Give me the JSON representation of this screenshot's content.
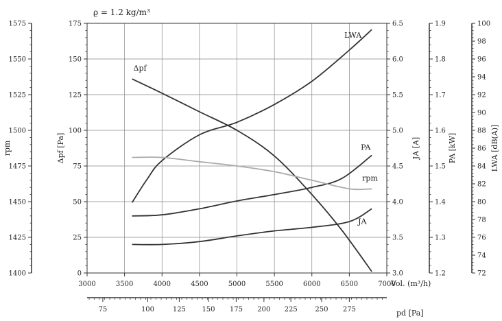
{
  "chart_data": {
    "type": "line",
    "density_note": "ϱ = 1.2 kg/m³",
    "x_axis": {
      "label": "Vol. (m³/h)",
      "min": 3000,
      "max": 7000,
      "ticks": [
        "3000",
        "3500",
        "4000",
        "4500",
        "5000",
        "5500",
        "6000",
        "6500",
        "7000"
      ]
    },
    "x2_axis": {
      "label": "pd [Pa]",
      "ticks": [
        {
          "v": 75,
          "x": 3210
        },
        {
          "v": 100,
          "x": 3810
        },
        {
          "v": 125,
          "x": 4230
        },
        {
          "v": 150,
          "x": 4620
        },
        {
          "v": 175,
          "x": 4990
        },
        {
          "v": 200,
          "x": 5360
        },
        {
          "v": 225,
          "x": 5720
        },
        {
          "v": 250,
          "x": 6130
        },
        {
          "v": 275,
          "x": 6500
        }
      ],
      "tick_labels": [
        "75",
        "100",
        "125",
        "150",
        "175",
        "200",
        "225",
        "250",
        "275"
      ]
    },
    "axes": {
      "rpm": {
        "label": "rpm",
        "min": 1400,
        "max": 1575,
        "ticks": [
          "1400",
          "1425",
          "1450",
          "1475",
          "1500",
          "1525",
          "1550",
          "1575"
        ]
      },
      "dp": {
        "label": "Δpf [Pa]",
        "min": 0,
        "max": 175,
        "ticks": [
          "0",
          "25",
          "50",
          "75",
          "100",
          "125",
          "150",
          "175"
        ]
      },
      "ja": {
        "label": "JA [A]",
        "min": 3.0,
        "max": 6.5,
        "ticks": [
          "3.0",
          "3.5",
          "4.0",
          "4.5",
          "5.0",
          "5.5",
          "6.0",
          "6.5"
        ]
      },
      "pa": {
        "label": "PA [kW]",
        "min": 1.2,
        "max": 1.9,
        "ticks": [
          "1.2",
          "1.3",
          "1.4",
          "1.5",
          "1.6",
          "1.7",
          "1.8",
          "1.9"
        ]
      },
      "lwa": {
        "label": "LWA [dB(A)]",
        "min": 72,
        "max": 100,
        "ticks": [
          "72",
          "74",
          "76",
          "78",
          "80",
          "82",
          "84",
          "86",
          "88",
          "90",
          "92",
          "94",
          "96",
          "98",
          "100"
        ]
      }
    },
    "series": [
      {
        "name": "Δpf",
        "axis": "dp",
        "color": "#333333",
        "x": [
          3600,
          4000,
          4500,
          5000,
          5500,
          6000,
          6400,
          6800
        ],
        "y": [
          136,
          126,
          113,
          100,
          82,
          55,
          30,
          1
        ]
      },
      {
        "name": "LWA",
        "axis": "lwa",
        "color": "#333333",
        "x": [
          3600,
          3800,
          4000,
          4500,
          5000,
          5500,
          6000,
          6500,
          6800
        ],
        "y": [
          79.9,
          82.5,
          84.6,
          87.5,
          88.9,
          90.9,
          93.5,
          97.0,
          99.3
        ]
      },
      {
        "name": "PA",
        "axis": "pa",
        "color": "#333333",
        "x": [
          3600,
          4000,
          4500,
          5000,
          5500,
          6000,
          6400,
          6800
        ],
        "y": [
          1.36,
          1.363,
          1.38,
          1.402,
          1.42,
          1.44,
          1.465,
          1.53
        ]
      },
      {
        "name": "rpm",
        "axis": "rpm",
        "color": "#aaaaaa",
        "x": [
          3600,
          4000,
          4500,
          5000,
          5500,
          6000,
          6500,
          6800
        ],
        "y": [
          1481,
          1481,
          1478,
          1475,
          1471,
          1465,
          1459,
          1459
        ]
      },
      {
        "name": "JA",
        "axis": "ja",
        "color": "#333333",
        "x": [
          3600,
          4000,
          4500,
          5000,
          5500,
          6000,
          6500,
          6800
        ],
        "y": [
          3.4,
          3.4,
          3.44,
          3.52,
          3.59,
          3.64,
          3.72,
          3.9
        ]
      }
    ],
    "labels": [
      {
        "series": "Δpf",
        "text": "Δpf"
      },
      {
        "series": "LWA",
        "text": "LWA"
      },
      {
        "series": "PA",
        "text": "PA"
      },
      {
        "series": "rpm",
        "text": "rpm"
      },
      {
        "series": "JA",
        "text": "JA"
      }
    ],
    "grid": true
  }
}
